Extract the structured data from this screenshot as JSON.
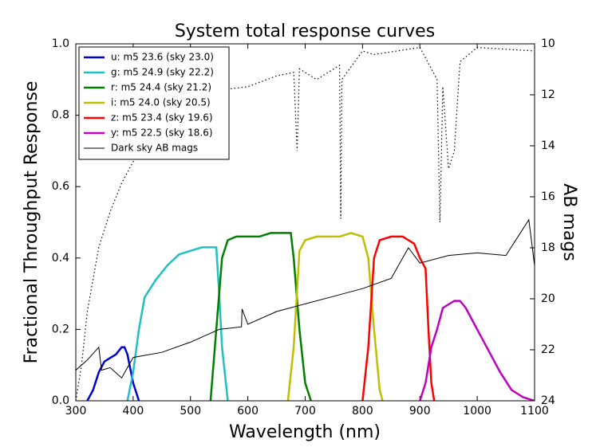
{
  "chart_data": {
    "type": "line",
    "title": "System total response curves",
    "x_label": "Wavelength (nm)",
    "y_label": "Fractional Throughput Response",
    "y2_label": "AB mags",
    "xlim": [
      300,
      1100
    ],
    "xticks": [
      300,
      400,
      500,
      600,
      700,
      800,
      900,
      1000,
      1100
    ],
    "ylim": [
      0,
      1
    ],
    "yticks": [
      {
        "value": 0,
        "label": "0.0"
      },
      0.2,
      0.4,
      0.6,
      0.8,
      {
        "value": 1,
        "label": "1.0"
      }
    ],
    "y2lim": [
      24,
      10
    ],
    "y2ticks": [
      24,
      22,
      20,
      18,
      16,
      14,
      12,
      10
    ],
    "legend": "upper left",
    "series": [
      {
        "name": "u: m5 23.6 (sky 23.0)",
        "color": "#0000cc",
        "style": "solid",
        "x": [
          320,
          330,
          340,
          350,
          360,
          370,
          380,
          385,
          390,
          400,
          410
        ],
        "values": [
          0,
          0.03,
          0.08,
          0.11,
          0.12,
          0.13,
          0.15,
          0.15,
          0.13,
          0.05,
          0
        ]
      },
      {
        "name": "g: m5 24.9 (sky 22.2)",
        "color": "#1fc0c0",
        "style": "solid",
        "x": [
          390,
          400,
          410,
          420,
          440,
          460,
          480,
          500,
          520,
          540,
          545,
          550,
          555,
          565
        ],
        "values": [
          0,
          0.08,
          0.2,
          0.29,
          0.34,
          0.38,
          0.41,
          0.42,
          0.43,
          0.43,
          0.43,
          0.3,
          0.15,
          0
        ]
      },
      {
        "name": "r: m5 24.4 (sky 21.2)",
        "color": "#007f00",
        "style": "solid",
        "x": [
          535,
          545,
          555,
          565,
          580,
          600,
          620,
          640,
          660,
          675,
          680,
          690,
          700,
          710
        ],
        "values": [
          0,
          0.2,
          0.4,
          0.45,
          0.46,
          0.46,
          0.46,
          0.47,
          0.47,
          0.47,
          0.4,
          0.2,
          0.05,
          0
        ]
      },
      {
        "name": "i: m5 24.0 (sky 20.5)",
        "color": "#bfbf00",
        "style": "solid",
        "x": [
          670,
          680,
          690,
          700,
          720,
          740,
          760,
          780,
          800,
          810,
          820,
          830,
          835
        ],
        "values": [
          0,
          0.15,
          0.42,
          0.45,
          0.46,
          0.46,
          0.46,
          0.47,
          0.46,
          0.4,
          0.2,
          0.03,
          0
        ]
      },
      {
        "name": "z: m5 23.4 (sky 19.6)",
        "color": "#ff0000",
        "style": "solid",
        "x": [
          800,
          810,
          820,
          830,
          850,
          870,
          890,
          900,
          910,
          915,
          920,
          925
        ],
        "values": [
          0,
          0.15,
          0.4,
          0.45,
          0.46,
          0.46,
          0.44,
          0.4,
          0.37,
          0.2,
          0.05,
          0
        ]
      },
      {
        "name": "y: m5 22.5 (sky 18.6)",
        "color": "#bf00bf",
        "style": "solid",
        "x": [
          900,
          910,
          920,
          930,
          940,
          950,
          960,
          970,
          980,
          1000,
          1020,
          1040,
          1060,
          1080,
          1100
        ],
        "values": [
          0,
          0.05,
          0.15,
          0.2,
          0.26,
          0.27,
          0.28,
          0.28,
          0.26,
          0.2,
          0.14,
          0.08,
          0.03,
          0.01,
          0
        ]
      },
      {
        "name": "Dark sky AB mags",
        "color": "#000000",
        "style": "thin",
        "axis": "y2",
        "x": [
          300,
          320,
          340,
          345,
          360,
          380,
          400,
          450,
          500,
          550,
          589,
          590,
          600,
          650,
          700,
          750,
          800,
          850,
          880,
          900,
          950,
          1000,
          1050,
          1090,
          1100
        ],
        "values": [
          22.8,
          22.4,
          21.9,
          22.8,
          22.7,
          23.1,
          22.3,
          22.1,
          21.7,
          21.2,
          21.1,
          20.4,
          21.0,
          20.5,
          20.2,
          19.9,
          19.6,
          19.2,
          18.0,
          18.6,
          18.3,
          18.2,
          18.3,
          16.9,
          18.7
        ]
      },
      {
        "color": "#000000",
        "style": "dotted",
        "x": [
          300,
          310,
          320,
          340,
          360,
          380,
          400,
          450,
          500,
          550,
          600,
          650,
          680,
          686,
          690,
          720,
          760,
          762,
          764,
          800,
          820,
          900,
          930,
          935,
          940,
          950,
          960,
          970,
          1000,
          1100
        ],
        "values": [
          0,
          0.1,
          0.25,
          0.43,
          0.53,
          0.61,
          0.67,
          0.77,
          0.83,
          0.87,
          0.88,
          0.91,
          0.92,
          0.7,
          0.93,
          0.9,
          0.94,
          0.51,
          0.9,
          0.98,
          0.97,
          0.99,
          0.9,
          0.5,
          0.88,
          0.65,
          0.7,
          0.95,
          0.99,
          0.98
        ]
      }
    ]
  }
}
